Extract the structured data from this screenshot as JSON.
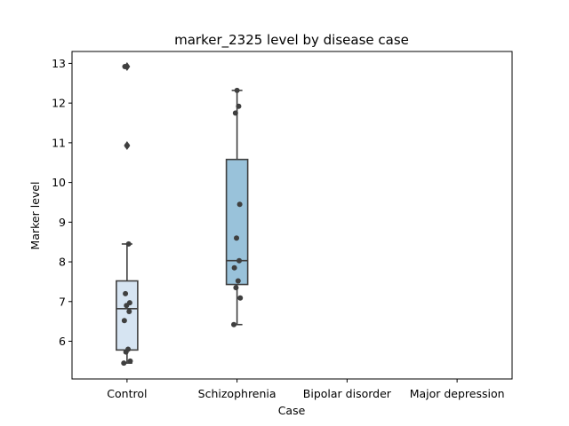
{
  "chart_data": {
    "type": "box",
    "title": "marker_2325 level by disease case",
    "xlabel": "Case",
    "ylabel": "Marker level",
    "categories": [
      "Control",
      "Schizophrenia",
      "Bipolar disorder",
      "Major depression"
    ],
    "ylim": [
      5.05,
      13.3
    ],
    "yticks": [
      6,
      7,
      8,
      9,
      10,
      11,
      12,
      13
    ],
    "grid": false,
    "groups": [
      {
        "category": "Control",
        "color": "#d6e4f2",
        "q1": 5.78,
        "median": 6.82,
        "q3": 7.52,
        "whisker_low": 5.45,
        "whisker_high": 8.45,
        "outliers": [
          10.93,
          12.92
        ],
        "points": [
          5.45,
          5.5,
          5.73,
          5.8,
          6.52,
          6.75,
          6.9,
          6.97,
          7.2,
          8.45,
          10.93,
          12.92
        ]
      },
      {
        "category": "Schizophrenia",
        "color": "#99c2da",
        "q1": 7.43,
        "median": 8.03,
        "q3": 10.58,
        "whisker_low": 6.42,
        "whisker_high": 12.32,
        "outliers": [],
        "points": [
          6.42,
          7.09,
          7.35,
          7.52,
          7.85,
          8.03,
          8.6,
          9.45,
          11.75,
          11.92,
          12.32
        ]
      },
      {
        "category": "Bipolar disorder",
        "color": "#6baed6",
        "points": []
      },
      {
        "category": "Major depression",
        "color": "#3182bd",
        "points": []
      }
    ]
  }
}
